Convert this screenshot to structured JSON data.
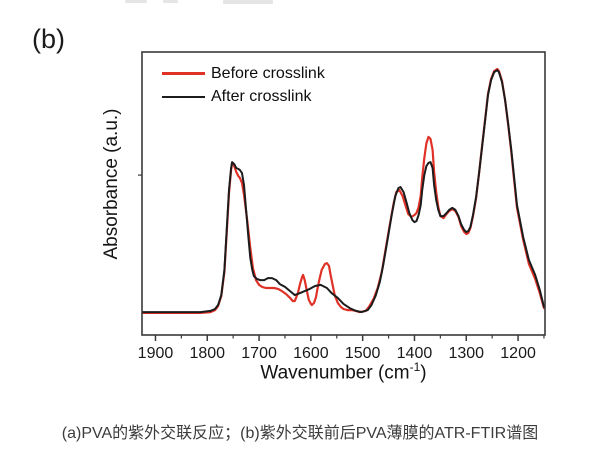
{
  "panel_label": "(b)",
  "caption": "(a)PVA的紫外交联反应；(b)紫外交联前后PVA薄膜的ATR-FTIR谱图",
  "chart_data": {
    "type": "line",
    "title": "",
    "xlabel_prefix": "Wavenumber (cm",
    "xlabel_sup": "-1",
    "xlabel_suffix": ")",
    "ylabel": "Absorbance (a.u.)",
    "frame_color": "#3a3a3a",
    "tick_label_color": "#1a1a1a",
    "x_axis": {
      "min": 1148,
      "max": 1926,
      "reversed": true,
      "major_ticks": [
        1900,
        1800,
        1700,
        1600,
        1500,
        1400,
        1300,
        1200
      ],
      "minor_ticks": [
        1850,
        1750,
        1650,
        1550,
        1450,
        1350,
        1250,
        1150
      ]
    },
    "y_axis": {
      "min": 0,
      "max": 1,
      "ticks_shown": false,
      "minor_ticks": [
        0.565
      ]
    },
    "legend": {
      "position": "top-left",
      "entries": [
        {
          "label": "Before crosslink",
          "color": "#e03127"
        },
        {
          "label": "After crosslink",
          "color": "#1c1c1c"
        }
      ]
    },
    "series": [
      {
        "name": "Before crosslink",
        "color": "#e03127",
        "width": 2.2,
        "points": [
          [
            1925,
            0.078
          ],
          [
            1871,
            0.078
          ],
          [
            1813,
            0.078
          ],
          [
            1794,
            0.081
          ],
          [
            1785,
            0.088
          ],
          [
            1779,
            0.102
          ],
          [
            1773,
            0.138
          ],
          [
            1767,
            0.223
          ],
          [
            1762,
            0.378
          ],
          [
            1758,
            0.502
          ],
          [
            1754,
            0.583
          ],
          [
            1752,
            0.608
          ],
          [
            1748,
            0.597
          ],
          [
            1744,
            0.576
          ],
          [
            1740,
            0.562
          ],
          [
            1737,
            0.555
          ],
          [
            1733,
            0.537
          ],
          [
            1729,
            0.495
          ],
          [
            1723,
            0.406
          ],
          [
            1717,
            0.307
          ],
          [
            1712,
            0.237
          ],
          [
            1706,
            0.194
          ],
          [
            1700,
            0.177
          ],
          [
            1694,
            0.17
          ],
          [
            1687,
            0.166
          ],
          [
            1679,
            0.166
          ],
          [
            1671,
            0.166
          ],
          [
            1663,
            0.163
          ],
          [
            1656,
            0.155
          ],
          [
            1648,
            0.145
          ],
          [
            1640,
            0.131
          ],
          [
            1635,
            0.12
          ],
          [
            1631,
            0.12
          ],
          [
            1625,
            0.148
          ],
          [
            1621,
            0.18
          ],
          [
            1617,
            0.205
          ],
          [
            1615,
            0.212
          ],
          [
            1612,
            0.194
          ],
          [
            1608,
            0.159
          ],
          [
            1604,
            0.124
          ],
          [
            1600,
            0.11
          ],
          [
            1598,
            0.106
          ],
          [
            1594,
            0.113
          ],
          [
            1590,
            0.134
          ],
          [
            1587,
            0.166
          ],
          [
            1583,
            0.201
          ],
          [
            1579,
            0.23
          ],
          [
            1573,
            0.251
          ],
          [
            1569,
            0.254
          ],
          [
            1565,
            0.244
          ],
          [
            1562,
            0.212
          ],
          [
            1558,
            0.177
          ],
          [
            1554,
            0.141
          ],
          [
            1548,
            0.113
          ],
          [
            1542,
            0.099
          ],
          [
            1537,
            0.092
          ],
          [
            1529,
            0.088
          ],
          [
            1521,
            0.088
          ],
          [
            1513,
            0.085
          ],
          [
            1506,
            0.081
          ],
          [
            1494,
            0.085
          ],
          [
            1487,
            0.102
          ],
          [
            1479,
            0.127
          ],
          [
            1471,
            0.166
          ],
          [
            1463,
            0.223
          ],
          [
            1456,
            0.3
          ],
          [
            1448,
            0.385
          ],
          [
            1440,
            0.466
          ],
          [
            1435,
            0.505
          ],
          [
            1429,
            0.512
          ],
          [
            1423,
            0.491
          ],
          [
            1417,
            0.456
          ],
          [
            1412,
            0.428
          ],
          [
            1406,
            0.417
          ],
          [
            1400,
            0.424
          ],
          [
            1396,
            0.431
          ],
          [
            1392,
            0.452
          ],
          [
            1388,
            0.491
          ],
          [
            1385,
            0.555
          ],
          [
            1381,
            0.625
          ],
          [
            1377,
            0.678
          ],
          [
            1373,
            0.7
          ],
          [
            1369,
            0.693
          ],
          [
            1365,
            0.654
          ],
          [
            1362,
            0.576
          ],
          [
            1358,
            0.505
          ],
          [
            1354,
            0.452
          ],
          [
            1350,
            0.42
          ],
          [
            1344,
            0.413
          ],
          [
            1338,
            0.428
          ],
          [
            1333,
            0.438
          ],
          [
            1327,
            0.445
          ],
          [
            1321,
            0.438
          ],
          [
            1315,
            0.417
          ],
          [
            1310,
            0.385
          ],
          [
            1304,
            0.364
          ],
          [
            1300,
            0.357
          ],
          [
            1296,
            0.36
          ],
          [
            1292,
            0.378
          ],
          [
            1287,
            0.42
          ],
          [
            1281,
            0.484
          ],
          [
            1275,
            0.576
          ],
          [
            1269,
            0.675
          ],
          [
            1263,
            0.77
          ],
          [
            1258,
            0.852
          ],
          [
            1252,
            0.905
          ],
          [
            1246,
            0.933
          ],
          [
            1240,
            0.94
          ],
          [
            1237,
            0.933
          ],
          [
            1231,
            0.898
          ],
          [
            1225,
            0.83
          ],
          [
            1219,
            0.742
          ],
          [
            1213,
            0.647
          ],
          [
            1208,
            0.555
          ],
          [
            1202,
            0.449
          ],
          [
            1190,
            0.336
          ],
          [
            1179,
            0.251
          ],
          [
            1167,
            0.198
          ],
          [
            1158,
            0.148
          ],
          [
            1150,
            0.095
          ]
        ]
      },
      {
        "name": "After crosslink",
        "color": "#1c1c1c",
        "width": 2,
        "points": [
          [
            1925,
            0.081
          ],
          [
            1871,
            0.081
          ],
          [
            1813,
            0.081
          ],
          [
            1794,
            0.085
          ],
          [
            1785,
            0.092
          ],
          [
            1779,
            0.106
          ],
          [
            1773,
            0.141
          ],
          [
            1767,
            0.23
          ],
          [
            1762,
            0.389
          ],
          [
            1758,
            0.512
          ],
          [
            1754,
            0.59
          ],
          [
            1752,
            0.611
          ],
          [
            1748,
            0.604
          ],
          [
            1744,
            0.59
          ],
          [
            1740,
            0.587
          ],
          [
            1737,
            0.583
          ],
          [
            1733,
            0.572
          ],
          [
            1729,
            0.53
          ],
          [
            1725,
            0.442
          ],
          [
            1721,
            0.353
          ],
          [
            1717,
            0.272
          ],
          [
            1713,
            0.23
          ],
          [
            1710,
            0.208
          ],
          [
            1704,
            0.198
          ],
          [
            1698,
            0.194
          ],
          [
            1690,
            0.194
          ],
          [
            1683,
            0.201
          ],
          [
            1675,
            0.201
          ],
          [
            1667,
            0.194
          ],
          [
            1660,
            0.18
          ],
          [
            1650,
            0.17
          ],
          [
            1640,
            0.155
          ],
          [
            1631,
            0.141
          ],
          [
            1621,
            0.148
          ],
          [
            1612,
            0.155
          ],
          [
            1602,
            0.163
          ],
          [
            1592,
            0.173
          ],
          [
            1581,
            0.177
          ],
          [
            1569,
            0.166
          ],
          [
            1560,
            0.148
          ],
          [
            1548,
            0.131
          ],
          [
            1537,
            0.11
          ],
          [
            1525,
            0.095
          ],
          [
            1513,
            0.085
          ],
          [
            1502,
            0.081
          ],
          [
            1490,
            0.088
          ],
          [
            1483,
            0.106
          ],
          [
            1475,
            0.138
          ],
          [
            1467,
            0.187
          ],
          [
            1460,
            0.251
          ],
          [
            1452,
            0.336
          ],
          [
            1444,
            0.424
          ],
          [
            1437,
            0.491
          ],
          [
            1431,
            0.519
          ],
          [
            1427,
            0.523
          ],
          [
            1421,
            0.505
          ],
          [
            1415,
            0.466
          ],
          [
            1410,
            0.431
          ],
          [
            1404,
            0.406
          ],
          [
            1400,
            0.399
          ],
          [
            1396,
            0.403
          ],
          [
            1392,
            0.424
          ],
          [
            1388,
            0.459
          ],
          [
            1385,
            0.512
          ],
          [
            1381,
            0.565
          ],
          [
            1377,
            0.597
          ],
          [
            1373,
            0.608
          ],
          [
            1369,
            0.611
          ],
          [
            1365,
            0.59
          ],
          [
            1362,
            0.53
          ],
          [
            1358,
            0.477
          ],
          [
            1354,
            0.442
          ],
          [
            1350,
            0.42
          ],
          [
            1344,
            0.42
          ],
          [
            1338,
            0.431
          ],
          [
            1333,
            0.442
          ],
          [
            1327,
            0.449
          ],
          [
            1321,
            0.442
          ],
          [
            1315,
            0.42
          ],
          [
            1310,
            0.392
          ],
          [
            1304,
            0.371
          ],
          [
            1300,
            0.364
          ],
          [
            1296,
            0.367
          ],
          [
            1292,
            0.382
          ],
          [
            1287,
            0.424
          ],
          [
            1281,
            0.488
          ],
          [
            1275,
            0.576
          ],
          [
            1269,
            0.671
          ],
          [
            1263,
            0.767
          ],
          [
            1258,
            0.848
          ],
          [
            1252,
            0.901
          ],
          [
            1246,
            0.929
          ],
          [
            1240,
            0.936
          ],
          [
            1237,
            0.929
          ],
          [
            1231,
            0.894
          ],
          [
            1225,
            0.83
          ],
          [
            1219,
            0.746
          ],
          [
            1213,
            0.654
          ],
          [
            1208,
            0.565
          ],
          [
            1202,
            0.459
          ],
          [
            1190,
            0.346
          ],
          [
            1179,
            0.265
          ],
          [
            1167,
            0.212
          ],
          [
            1158,
            0.159
          ],
          [
            1150,
            0.099
          ]
        ]
      }
    ]
  }
}
